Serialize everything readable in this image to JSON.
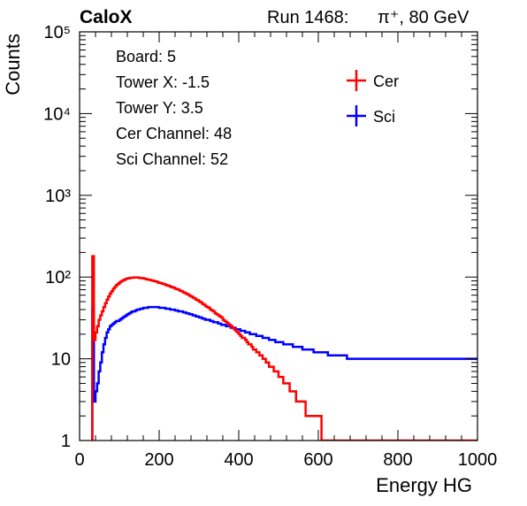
{
  "header": {
    "experiment": "CaloX",
    "run_label": "Run 1468:",
    "beam": "π⁺, 80 GeV"
  },
  "info_box": {
    "lines": [
      "Board: 5",
      "Tower X: -1.5",
      "Tower Y: 3.5",
      "Cer Channel: 48",
      "Sci Channel: 52"
    ]
  },
  "colors": {
    "cer": "#ff0000",
    "sci": "#0000ff",
    "axis": "#000000",
    "background": "#ffffff"
  },
  "chart_data": {
    "type": "line",
    "subtype": "step-histogram",
    "xlabel": "Energy HG",
    "ylabel": "Counts",
    "xlim": [
      0,
      1000
    ],
    "ylim": [
      1,
      100000
    ],
    "yscale": "log",
    "x_ticks": [
      "0",
      "200",
      "400",
      "600",
      "800",
      "1000"
    ],
    "y_ticks": [
      "1",
      "10",
      "10²",
      "10³",
      "10⁴",
      "10⁵"
    ],
    "legend_position": "top-right",
    "grid": false,
    "bin_width": 4,
    "bin_start": 0,
    "series": [
      {
        "name": "Cer",
        "color": "#ff0000",
        "values": [
          0,
          0,
          0,
          0,
          0,
          0,
          0,
          0,
          180,
          17,
          21,
          25,
          30,
          34,
          38,
          43,
          48,
          53,
          58,
          63,
          67,
          72,
          76,
          80,
          83,
          86,
          89,
          91,
          93,
          95,
          96,
          97,
          98,
          98,
          99,
          99,
          99,
          98,
          97,
          97,
          96,
          95,
          94,
          93,
          92,
          91,
          90,
          89,
          88,
          86,
          85,
          84,
          83,
          82,
          80,
          79,
          78,
          76,
          75,
          74,
          72,
          71,
          70,
          68,
          67,
          65,
          64,
          62,
          61,
          59,
          58,
          56,
          55,
          53,
          52,
          50,
          49,
          47,
          46,
          44,
          43,
          42,
          40,
          39,
          38,
          36,
          35,
          34,
          33,
          32,
          30,
          29,
          28,
          27,
          26,
          25,
          24,
          23,
          22,
          21,
          20,
          19,
          18,
          18,
          17,
          16,
          15,
          15,
          14,
          13,
          13,
          12,
          12,
          11,
          11,
          10,
          10,
          9,
          9,
          8,
          8,
          8,
          7,
          7,
          7,
          6,
          6,
          6,
          5,
          5,
          5,
          5,
          4,
          4,
          4,
          4,
          3,
          3,
          3,
          3,
          3,
          3,
          2,
          2,
          2,
          2,
          2,
          2,
          2,
          2,
          2,
          2,
          1,
          1,
          1,
          1,
          1,
          1,
          1,
          1,
          1,
          1,
          1,
          1,
          1,
          1,
          1,
          1,
          1,
          1,
          1,
          1,
          1,
          1,
          1,
          1,
          1,
          1,
          1,
          1,
          1,
          1,
          1,
          1,
          1,
          1,
          1,
          1,
          1,
          1,
          1,
          1,
          1,
          1,
          1,
          1,
          1,
          1,
          1,
          1,
          1,
          1,
          1,
          1,
          1,
          1,
          1,
          1,
          1,
          1,
          1,
          1,
          1,
          1,
          1,
          1,
          1,
          1,
          1,
          1,
          1,
          1,
          1,
          1,
          1,
          1,
          1,
          1,
          1,
          1,
          1,
          1,
          1,
          1,
          1,
          1,
          1,
          1,
          1,
          1,
          1,
          1,
          1,
          1,
          1,
          1,
          1,
          1,
          1,
          1
        ]
      },
      {
        "name": "Sci",
        "color": "#0000ff",
        "values": [
          0,
          0,
          0,
          0,
          0,
          0,
          0,
          0,
          42,
          3,
          4,
          5,
          7,
          9,
          12,
          15,
          18,
          21,
          23,
          25,
          26,
          27,
          28,
          29,
          29,
          30,
          31,
          32,
          33,
          34,
          35,
          36,
          37,
          38,
          38,
          39,
          40,
          40,
          41,
          41,
          42,
          42,
          42,
          43,
          43,
          43,
          43,
          43,
          43,
          43,
          42,
          42,
          42,
          42,
          41,
          41,
          41,
          40,
          40,
          40,
          39,
          39,
          38,
          38,
          38,
          37,
          37,
          36,
          36,
          35,
          35,
          34,
          34,
          33,
          33,
          32,
          32,
          31,
          31,
          30,
          30,
          30,
          29,
          29,
          28,
          28,
          28,
          27,
          27,
          26,
          26,
          26,
          25,
          25,
          25,
          24,
          24,
          24,
          23,
          23,
          23,
          22,
          22,
          22,
          21,
          21,
          21,
          20,
          20,
          20,
          20,
          19,
          19,
          19,
          19,
          18,
          18,
          18,
          18,
          17,
          17,
          17,
          17,
          16,
          16,
          16,
          16,
          16,
          15,
          15,
          15,
          15,
          15,
          15,
          14,
          14,
          14,
          14,
          14,
          14,
          13,
          13,
          13,
          13,
          13,
          13,
          13,
          12,
          12,
          12,
          12,
          12,
          12,
          12,
          12,
          12,
          11,
          11,
          11,
          11,
          11,
          11,
          11,
          11,
          11,
          11,
          11,
          11,
          10,
          10,
          10,
          10,
          10,
          10,
          10,
          10,
          10,
          10,
          10,
          10,
          10,
          10,
          10,
          10,
          10,
          10,
          10,
          10,
          10,
          10,
          10,
          10,
          10,
          10,
          10,
          10,
          10,
          10,
          10,
          10,
          10,
          10,
          10,
          10,
          10,
          10,
          10,
          10,
          10,
          10,
          10,
          10,
          10,
          10,
          10,
          10,
          10,
          10,
          10,
          10,
          10,
          10,
          10,
          10,
          10,
          10,
          10,
          10,
          10,
          10,
          10,
          10,
          10,
          10,
          10,
          10,
          10,
          10,
          10,
          10,
          10,
          10,
          10,
          10,
          10,
          10,
          10,
          10,
          10,
          10
        ]
      }
    ]
  }
}
